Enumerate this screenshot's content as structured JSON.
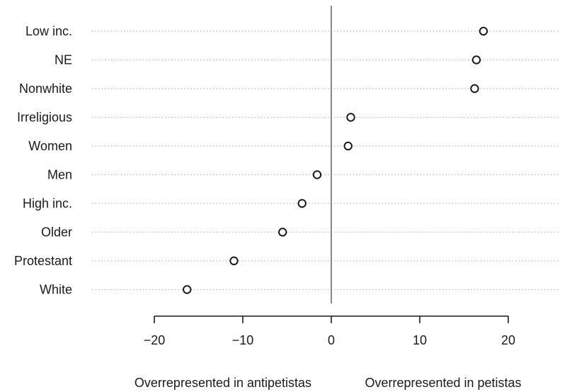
{
  "chart_data": {
    "type": "scatter",
    "subtype": "dot-plot",
    "categories": [
      "Low inc.",
      "NE",
      "Nonwhite",
      "Irreligious",
      "Women",
      "Men",
      "High inc.",
      "Older",
      "Protestant",
      "White"
    ],
    "values": [
      17.2,
      16.4,
      16.2,
      2.2,
      1.9,
      -1.6,
      -3.3,
      -5.5,
      -11.0,
      -16.3
    ],
    "xlim": [
      -20,
      20
    ],
    "xticks": [
      -20,
      -10,
      0,
      10,
      20
    ],
    "xtick_labels": [
      "−20",
      "−10",
      "0",
      "10",
      "20"
    ],
    "xlabel_left": "Overrepresented in antipetistas",
    "xlabel_right": "Overrepresented in petistas",
    "reference_line_x": 0,
    "grid": "dotted horizontal guide per category",
    "marker": "open circle",
    "colors": {
      "marker": "#1a1a1a",
      "guide": "#b8b8b8",
      "axis": "#1a1a1a",
      "zero_line": "#555555"
    }
  }
}
